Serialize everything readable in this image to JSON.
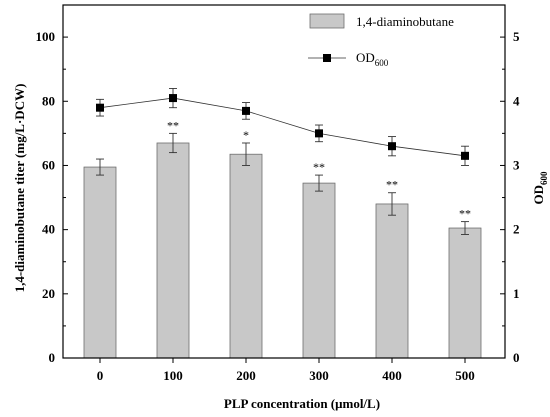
{
  "chart_data": {
    "type": "bar",
    "categories": [
      "0",
      "100",
      "200",
      "300",
      "400",
      "500"
    ],
    "xlabel": "PLP concentration (μmol/L)",
    "ylabel": "1,4-diaminobutane titer (mg/L·DCW)",
    "ylabel_right_main": "OD",
    "ylabel_right_sub": "600",
    "ylim": [
      0,
      110
    ],
    "yticks": [
      "0",
      "20",
      "40",
      "60",
      "80",
      "100"
    ],
    "ylim_right": [
      0,
      5.5
    ],
    "yticks_right": [
      "0",
      "1",
      "2",
      "3",
      "4",
      "5"
    ],
    "series": [
      {
        "name": "1,4-diaminobutane",
        "kind": "bar",
        "axis": "left",
        "values": [
          59.5,
          67,
          63.5,
          54.5,
          48,
          40.5
        ],
        "errors": [
          2.5,
          3,
          3.5,
          2.5,
          3.5,
          2
        ],
        "significance": [
          "",
          "**",
          "*",
          "**",
          "**",
          "**"
        ]
      },
      {
        "name_main": "OD",
        "name_sub": "600",
        "kind": "line",
        "axis": "right",
        "values": [
          3.9,
          4.05,
          3.85,
          3.5,
          3.3,
          3.15
        ],
        "errors": [
          0.13,
          0.15,
          0.13,
          0.13,
          0.15,
          0.15
        ]
      }
    ],
    "legend_position": "top-right",
    "grid": false
  }
}
